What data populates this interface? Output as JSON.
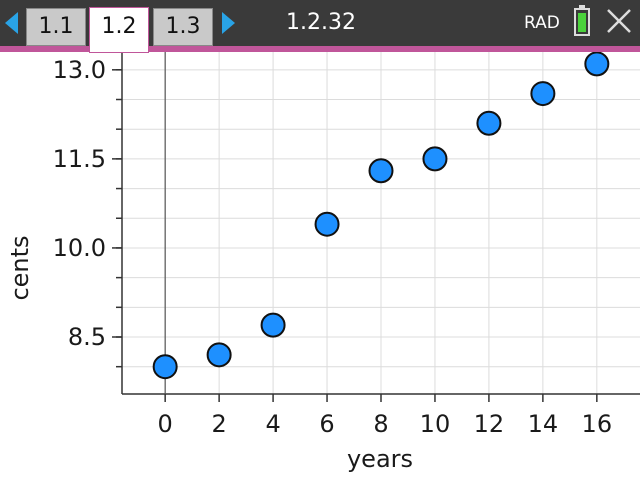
{
  "header": {
    "tabs": [
      {
        "label": "1.1"
      },
      {
        "label": "1.2",
        "active": true
      },
      {
        "label": "1.3"
      }
    ],
    "document_title": "1.2.32",
    "angle_mode": "RAD"
  },
  "colors": {
    "point_fill": "#1e90ff",
    "accent": "#c0569a",
    "topbar": "#3a3a3a"
  },
  "chart_data": {
    "type": "scatter",
    "title": "",
    "xlabel": "years",
    "ylabel": "cents",
    "x": [
      0,
      2,
      4,
      6,
      8,
      10,
      12,
      14,
      16
    ],
    "y": [
      8.0,
      8.2,
      8.7,
      10.4,
      11.3,
      11.5,
      12.1,
      12.6,
      13.1
    ],
    "x_ticks": [
      "0",
      "2",
      "4",
      "6",
      "8",
      "10",
      "12",
      "14",
      "16"
    ],
    "y_ticks": [
      "8.5",
      "10.0",
      "11.5",
      "13.0"
    ],
    "y_tick_values": [
      8.5,
      10.0,
      11.5,
      13.0
    ],
    "xlim": [
      -1.6,
      17.6
    ],
    "ylim": [
      7.54,
      13.3
    ],
    "grid": true
  }
}
